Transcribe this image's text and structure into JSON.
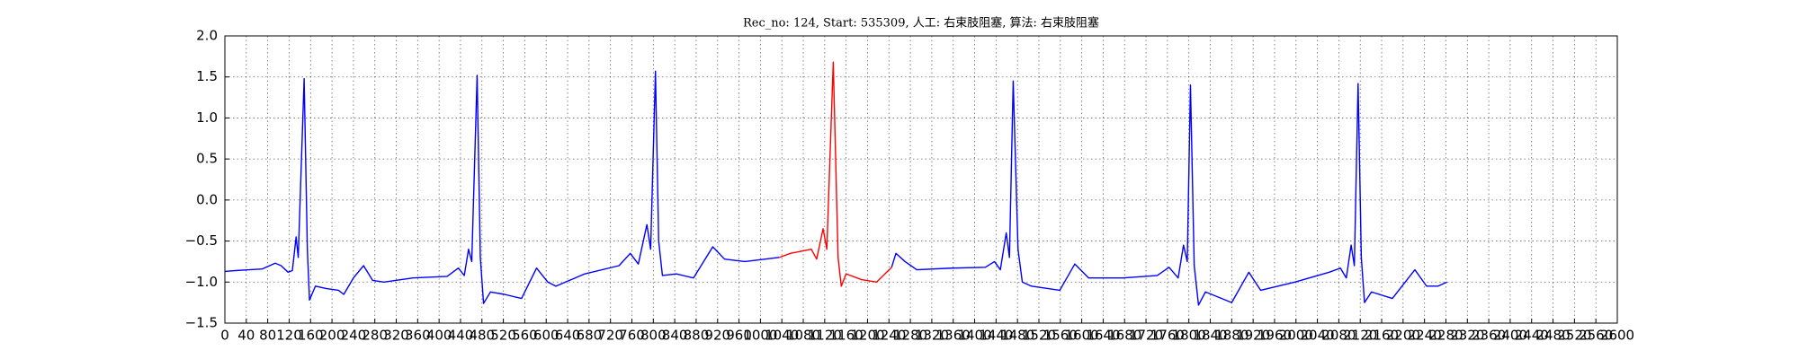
{
  "chart_data": {
    "type": "line",
    "title": "Rec_no: 124, Start: 535309, 人工: 右束肢阻塞, 算法: 右束肢阻塞",
    "xlim": [
      0,
      2600
    ],
    "xticks": [
      0,
      40,
      80,
      120,
      160,
      200,
      240,
      280,
      320,
      360,
      400,
      440,
      480,
      520,
      560,
      600,
      640,
      680,
      720,
      760,
      800,
      840,
      880,
      920,
      960,
      1000,
      1040,
      1080,
      1120,
      1160,
      1200,
      1240,
      1280,
      1320,
      1360,
      1400,
      1440,
      1480,
      1520,
      1560,
      1600,
      1640,
      1680,
      1720,
      1760,
      1800,
      1840,
      1880,
      1920,
      1960,
      2000,
      2040,
      2080,
      2120,
      2160,
      2200,
      2240,
      2280,
      2320,
      2360,
      2400,
      2440,
      2480,
      2520,
      2560,
      2600
    ],
    "ylim": [
      -1.5,
      2.0
    ],
    "yticks": [
      {
        "value": -1.5,
        "label": "−1.5"
      },
      {
        "value": -1.0,
        "label": "−1.0"
      },
      {
        "value": -0.5,
        "label": "−0.5"
      },
      {
        "value": 0,
        "label": "0.0"
      },
      0.5,
      {
        "value": 1,
        "label": "1.0"
      },
      1.5,
      {
        "value": 2,
        "label": "2.0"
      }
    ],
    "grid": true,
    "series": [
      {
        "color": "#0000ff",
        "x": [
          0,
          20,
          45,
          70,
          94,
          105,
          118,
          126,
          133,
          137,
          148,
          154,
          158,
          169,
          190,
          212,
          222,
          240,
          259,
          276,
          297,
          351,
          415,
          436,
          447,
          455,
          461,
          471,
          477,
          483,
          496,
          522,
          554,
          582,
          603,
          618,
          672,
          736,
          757,
          772,
          788,
          795,
          804,
          810,
          817,
          843,
          875,
          911,
          933,
          971,
          1035,
          1140,
          1245,
          1253,
          1270,
          1292,
          1356,
          1420,
          1437,
          1448,
          1459,
          1465,
          1472,
          1481,
          1489,
          1506,
          1559,
          1587,
          1613,
          1677,
          1741,
          1763,
          1780,
          1790,
          1797,
          1803,
          1810,
          1818,
          1831,
          1880,
          1912,
          1934,
          1998,
          2062,
          2083,
          2094,
          2103,
          2109,
          2116,
          2122,
          2128,
          2141,
          2180,
          2222,
          2244,
          2265,
          2282
        ],
        "values": [
          -0.87,
          -0.86,
          -0.85,
          -0.84,
          -0.77,
          -0.8,
          -0.88,
          -0.86,
          -0.45,
          -0.7,
          1.48,
          -0.6,
          -1.22,
          -1.05,
          -1.08,
          -1.1,
          -1.15,
          -0.95,
          -0.8,
          -0.98,
          -1.0,
          -0.95,
          -0.93,
          -0.83,
          -0.92,
          -0.6,
          -0.75,
          1.52,
          -0.7,
          -1.26,
          -1.12,
          -1.15,
          -1.2,
          -0.83,
          -1.0,
          -1.05,
          -0.9,
          -0.8,
          -0.65,
          -0.78,
          -0.3,
          -0.6,
          1.57,
          -0.5,
          -0.92,
          -0.9,
          -0.95,
          -0.57,
          -0.72,
          -0.75,
          -0.7,
          null,
          -0.82,
          -0.65,
          -0.75,
          -0.85,
          -0.83,
          -0.82,
          -0.75,
          -0.85,
          -0.4,
          -0.7,
          1.45,
          -0.6,
          -1.0,
          -1.05,
          -1.1,
          -0.78,
          -0.95,
          -0.95,
          -0.92,
          -0.82,
          -0.95,
          -0.55,
          -0.75,
          1.4,
          -0.8,
          -1.28,
          -1.12,
          -1.25,
          -0.88,
          -1.1,
          -1.0,
          -0.88,
          -0.83,
          -0.95,
          -0.55,
          -0.8,
          1.42,
          -0.7,
          -1.25,
          -1.12,
          -1.2,
          -0.85,
          -1.05,
          -1.05,
          -1.0
        ]
      },
      {
        "color": "#ff0000",
        "x": [
          1035,
          1056,
          1095,
          1105,
          1117,
          1124,
          1136,
          1145,
          1151,
          1160,
          1189,
          1217,
          1245
        ],
        "values": [
          -0.7,
          -0.65,
          -0.6,
          -0.72,
          -0.35,
          -0.6,
          1.68,
          -0.7,
          -1.05,
          -0.9,
          -0.97,
          -1.0,
          -0.82
        ]
      }
    ]
  }
}
